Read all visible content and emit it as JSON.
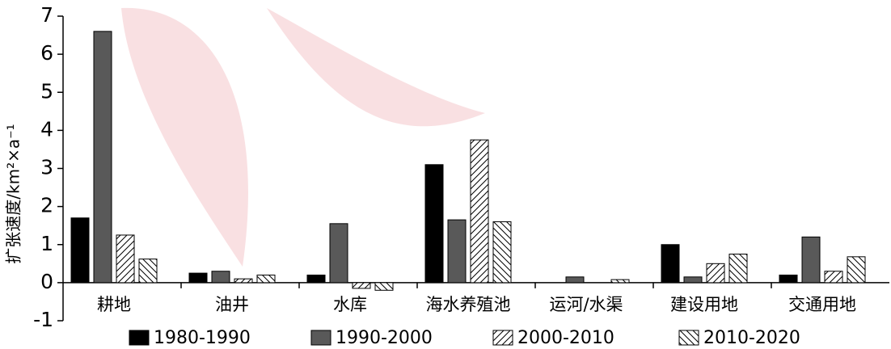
{
  "chart_data": {
    "type": "bar",
    "y_label": "扩张速度/km²×a⁻¹",
    "categories": [
      "耕地",
      "油井",
      "水库",
      "海水养殖池",
      "运河/水渠",
      "建设用地",
      "交通用地"
    ],
    "series": [
      {
        "name": "1980-1990",
        "color": "#000000",
        "hatch": "none",
        "values": [
          1.7,
          0.25,
          0.2,
          3.1,
          0,
          1.0,
          0.2
        ]
      },
      {
        "name": "1990-2000",
        "color": "#595959",
        "hatch": "none",
        "values": [
          6.6,
          0.3,
          1.55,
          1.65,
          0.15,
          0.15,
          1.2
        ]
      },
      {
        "name": "2000-2010",
        "color": "#ffffff",
        "hatch": "forward",
        "values": [
          1.25,
          0.1,
          -0.15,
          3.75,
          0,
          0.5,
          0.3
        ]
      },
      {
        "name": "2010-2020",
        "color": "#ffffff",
        "hatch": "backward",
        "values": [
          0.62,
          0.2,
          -0.2,
          1.6,
          0.08,
          0.75,
          0.68
        ]
      }
    ],
    "ylim": [
      -1,
      7
    ],
    "yticks": [
      -1,
      0,
      1,
      2,
      3,
      4,
      5,
      6,
      7
    ]
  }
}
